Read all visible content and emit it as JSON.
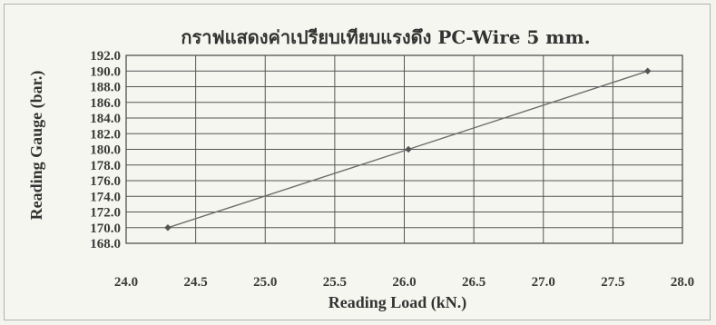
{
  "chart_data": {
    "type": "line",
    "title": "กราฟแสดงค่าเปรียบเทียบแรงดึง PC-Wire 5 mm.",
    "xlabel": "Reading Load (kN.)",
    "ylabel": "Reading Gauge (bar.)",
    "xlim": [
      24.0,
      28.0
    ],
    "ylim": [
      168.0,
      192.0
    ],
    "x_ticks": [
      "24.0",
      "24.5",
      "25.0",
      "25.5",
      "26.0",
      "26.5",
      "27.0",
      "27.5",
      "28.0"
    ],
    "y_ticks": [
      "168.0",
      "170.0",
      "172.0",
      "174.0",
      "176.0",
      "178.0",
      "180.0",
      "182.0",
      "184.0",
      "186.0",
      "188.0",
      "190.0",
      "192.0"
    ],
    "grid": true,
    "series": [
      {
        "x": [
          24.3,
          26.03,
          27.75
        ],
        "y": [
          170.0,
          180.0,
          190.0
        ]
      }
    ],
    "colors": {
      "line": "#6e6e6e",
      "grid": "#555555",
      "background": "#f6f6f0"
    }
  }
}
